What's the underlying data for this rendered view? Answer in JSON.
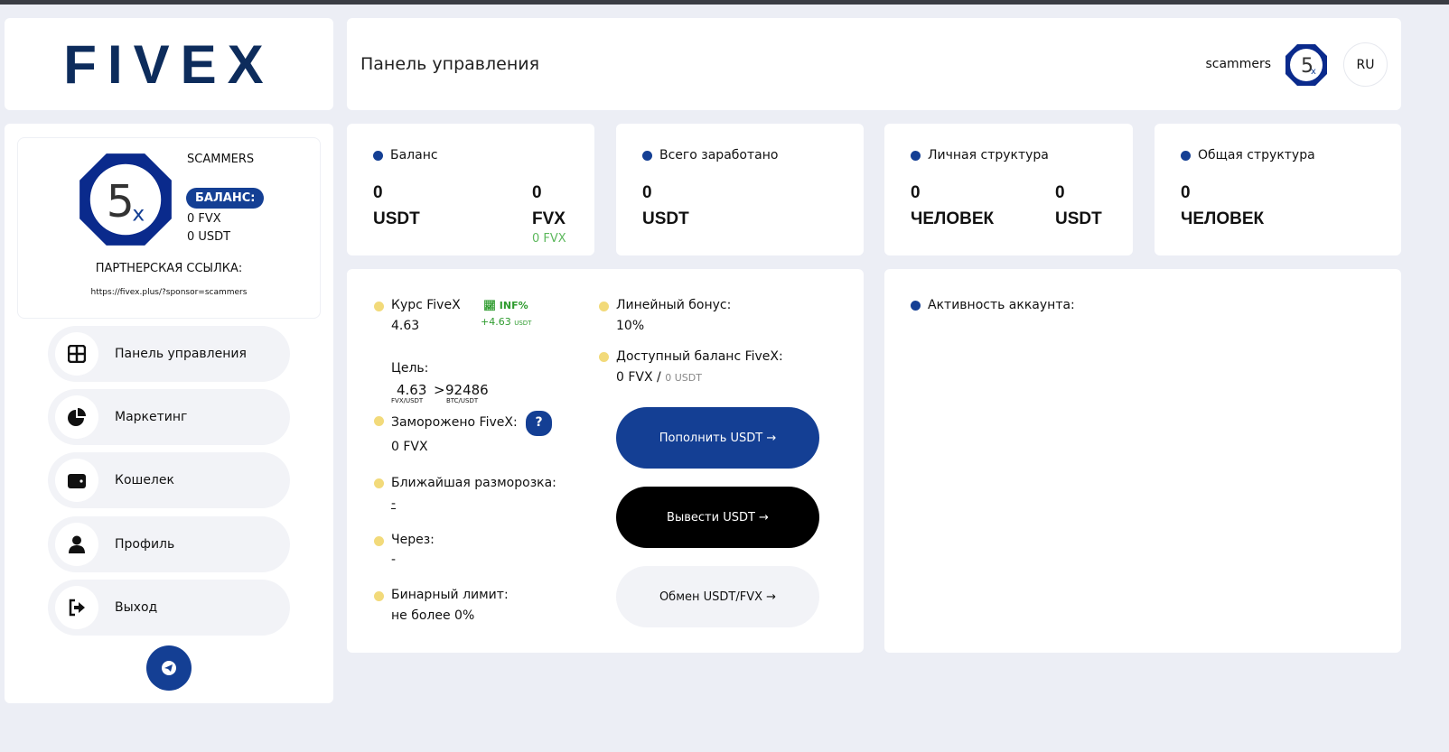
{
  "logo": "FIVEX",
  "header": {
    "title": "Панель управления",
    "username": "scammers",
    "lang": "RU"
  },
  "profile": {
    "name": "SCAMMERS",
    "balance_label": "БАЛАНС:",
    "fvx": "0 FVX",
    "usdt": "0 USDT",
    "ref_label": "ПАРТНЕРСКАЯ ССЫЛКА:",
    "ref_link": "https://fivex.plus/?sponsor=scammers"
  },
  "nav": [
    {
      "label": "Панель управления",
      "icon": "grid-icon"
    },
    {
      "label": "Маркетинг",
      "icon": "pie-chart-icon"
    },
    {
      "label": "Кошелек",
      "icon": "wallet-icon"
    },
    {
      "label": "Профиль",
      "icon": "user-icon"
    },
    {
      "label": "Выход",
      "icon": "logout-icon"
    }
  ],
  "stats": {
    "balance": {
      "title": "Баланс",
      "v1": "0",
      "u1": "USDT",
      "v2": "0",
      "u2": "FVX",
      "sub": "0 FVX"
    },
    "earned": {
      "title": "Всего заработано",
      "v1": "0",
      "u1": "USDT"
    },
    "personal": {
      "title": "Личная структура",
      "v1": "0",
      "u1": "ЧЕЛОВЕК",
      "v2": "0",
      "u2": "USDT"
    },
    "total": {
      "title": "Общая структура",
      "v1": "0",
      "u1": "ЧЕЛОВЕК"
    }
  },
  "main": {
    "rate_label": "Курс FiveX",
    "rate": "4.63",
    "inf": "INF%",
    "inf_delta": "+4.63",
    "inf_unit": "USDT",
    "goal_label": "Цель:",
    "goal_a": "4.63",
    "goal_sep": ">",
    "goal_b": "92486",
    "goal_a_unit": "FVX/USDT",
    "goal_b_unit": "BTC/USDT",
    "frozen_label": "Заморожено FiveX:",
    "frozen_help": "?",
    "frozen": "0 FVX",
    "unfreeze_label": "Ближайшая разморозка:",
    "unfreeze": "-",
    "through_label": "Через:",
    "through": "-",
    "binary_label": "Бинарный лимит:",
    "binary": "не более 0%",
    "linear_label": "Линейный бонус:",
    "linear": "10%",
    "avail_label": "Доступный баланс FiveX:",
    "avail_fvx": "0 FVX /",
    "avail_usdt": "0 USDT",
    "deposit": "Пополнить USDT →",
    "withdraw": "Вывести USDT →",
    "exchange": "Обмен USDT/FVX →"
  },
  "activity": {
    "title": "Активность аккаунта:"
  },
  "colors": {
    "primary": "#143f94",
    "logo": "#0d2c5c",
    "green": "#2e9b2e",
    "yellow": "#f2da7a"
  }
}
